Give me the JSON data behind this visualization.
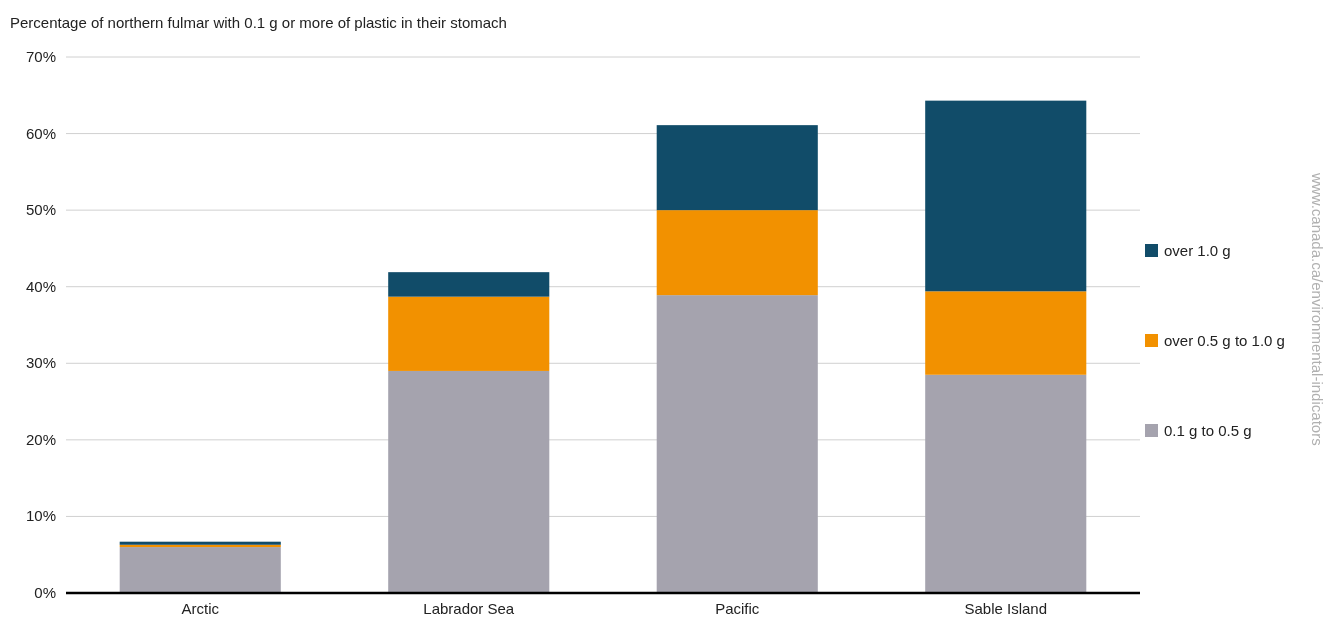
{
  "chart_data": {
    "type": "bar",
    "title": "Percentage of northern fulmar with 0.1 g or more of plastic in their stomach",
    "categories": [
      "Arctic",
      "Labrador Sea",
      "Pacific",
      "Sable Island"
    ],
    "stacked": true,
    "series": [
      {
        "name": "0.1 g to 0.5 g",
        "color": "#a5a3ae",
        "values": [
          6.0,
          29.0,
          38.9,
          28.5
        ]
      },
      {
        "name": "over 0.5 g to 1.0 g",
        "color": "#f29100",
        "values": [
          0.3,
          9.7,
          11.1,
          10.9
        ]
      },
      {
        "name": "over 1.0 g",
        "color": "#114c69",
        "values": [
          0.4,
          3.2,
          11.1,
          24.9
        ]
      }
    ],
    "ylim": [
      0,
      70
    ],
    "yticks": [
      {
        "value": 0,
        "label": "0%"
      },
      {
        "value": 10,
        "label": "10%"
      },
      {
        "value": 20,
        "label": "20%"
      },
      {
        "value": 30,
        "label": "30%"
      },
      {
        "value": 40,
        "label": "40%"
      },
      {
        "value": 50,
        "label": "50%"
      },
      {
        "value": 60,
        "label": "60%"
      },
      {
        "value": 70,
        "label": "70%"
      }
    ],
    "grid": "y",
    "legend": "right",
    "annotations": [
      "www.canada.ca/environmental-indicators"
    ]
  }
}
